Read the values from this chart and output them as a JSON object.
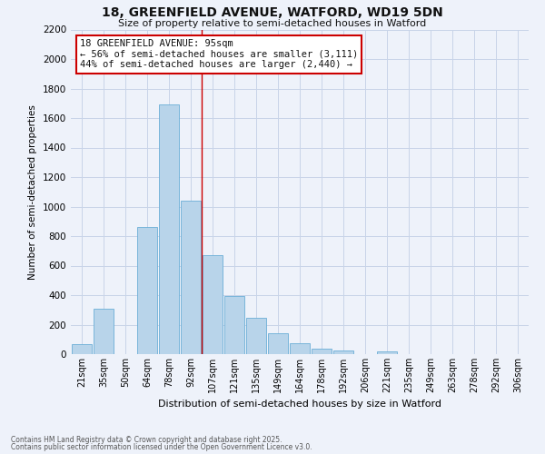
{
  "title": "18, GREENFIELD AVENUE, WATFORD, WD19 5DN",
  "subtitle": "Size of property relative to semi-detached houses in Watford",
  "xlabel": "Distribution of semi-detached houses by size in Watford",
  "ylabel": "Number of semi-detached properties",
  "bar_labels": [
    "21sqm",
    "35sqm",
    "50sqm",
    "64sqm",
    "78sqm",
    "92sqm",
    "107sqm",
    "121sqm",
    "135sqm",
    "149sqm",
    "164sqm",
    "178sqm",
    "192sqm",
    "206sqm",
    "221sqm",
    "235sqm",
    "249sqm",
    "263sqm",
    "278sqm",
    "292sqm",
    "306sqm"
  ],
  "bar_values": [
    70,
    310,
    0,
    860,
    1690,
    1040,
    670,
    395,
    245,
    140,
    75,
    35,
    25,
    0,
    20,
    0,
    0,
    0,
    0,
    0,
    0
  ],
  "bar_color": "#b8d4ea",
  "bar_edge_color": "#6baed6",
  "grid_color": "#c8d4e8",
  "background_color": "#eef2fa",
  "vline_x": 5.5,
  "vline_color": "#cc0000",
  "annotation_title": "18 GREENFIELD AVENUE: 95sqm",
  "annotation_line1": "← 56% of semi-detached houses are smaller (3,111)",
  "annotation_line2": "44% of semi-detached houses are larger (2,440) →",
  "annotation_box_color": "#ffffff",
  "annotation_box_edge_color": "#cc0000",
  "ylim": [
    0,
    2200
  ],
  "yticks": [
    0,
    200,
    400,
    600,
    800,
    1000,
    1200,
    1400,
    1600,
    1800,
    2000,
    2200
  ],
  "footnote1": "Contains HM Land Registry data © Crown copyright and database right 2025.",
  "footnote2": "Contains public sector information licensed under the Open Government Licence v3.0."
}
